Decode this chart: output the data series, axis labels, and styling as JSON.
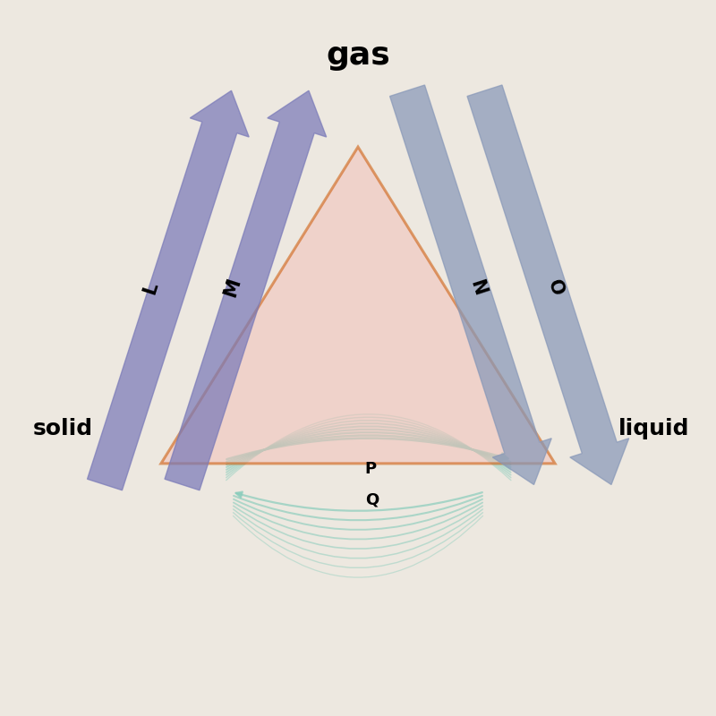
{
  "label_gas": "gas",
  "label_solid": "solid",
  "label_liquid": "liquid",
  "label_L": "L",
  "label_M": "M",
  "label_N": "N",
  "label_O": "O",
  "label_P": "P",
  "label_Q": "Q",
  "triangle_color": "#cc5500",
  "triangle_fill": "#f2c0b8",
  "triangle_alpha": 0.55,
  "arrow_left_color": "#7a7ab8",
  "arrow_right_color": "#8898b8",
  "arrow_bottom_color": "#88ccbb",
  "bg_color": "#ede8e0"
}
